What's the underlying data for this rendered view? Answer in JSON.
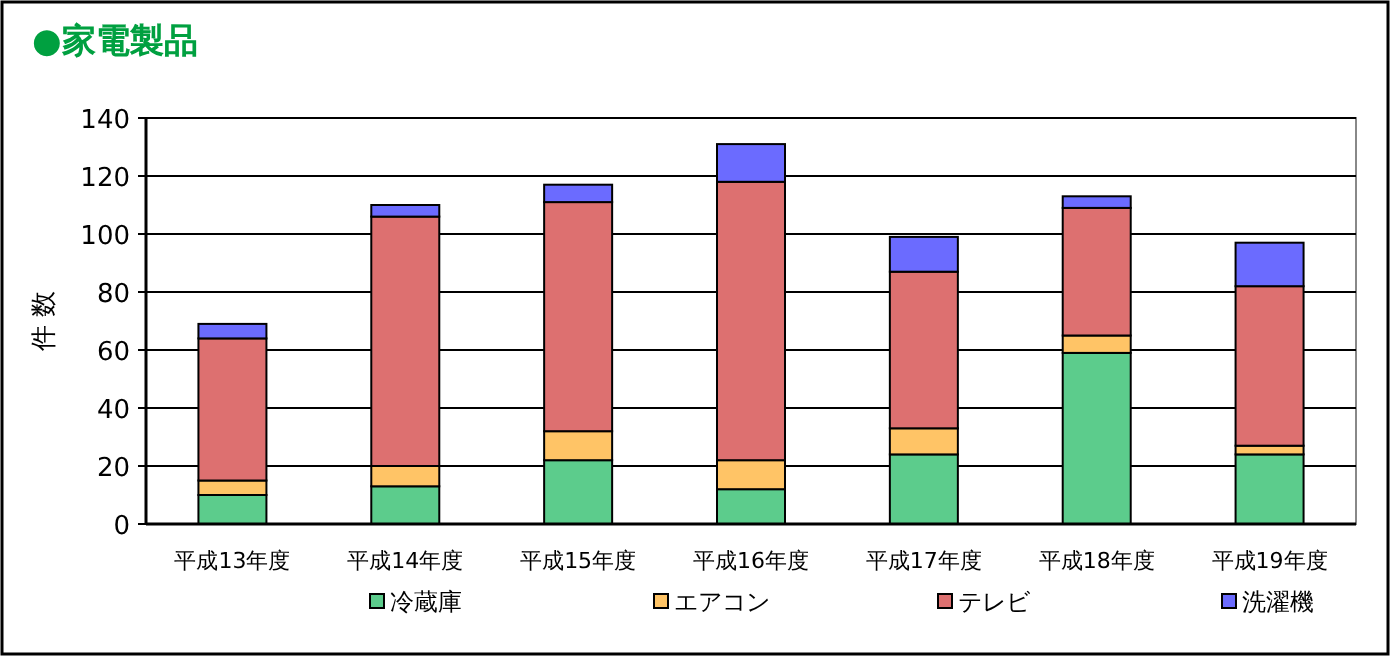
{
  "chart_data": {
    "type": "bar",
    "title": "●家電製品",
    "ylabel": "件 数",
    "stacked": true,
    "categories": [
      "平成13年度",
      "平成14年度",
      "平成15年度",
      "平成16年度",
      "平成17年度",
      "平成18年度",
      "平成19年度"
    ],
    "series": [
      {
        "name": "冷蔵庫",
        "color": "#5ccc8c",
        "values": [
          10,
          13,
          22,
          12,
          24,
          59,
          24
        ]
      },
      {
        "name": "エアコン",
        "color": "#ffc466",
        "values": [
          5,
          7,
          10,
          10,
          9,
          6,
          3
        ]
      },
      {
        "name": "テレビ",
        "color": "#dd7070",
        "values": [
          49,
          86,
          79,
          96,
          54,
          44,
          55
        ]
      },
      {
        "name": "洗濯機",
        "color": "#6b6bff",
        "values": [
          5,
          4,
          6,
          13,
          12,
          4,
          15
        ]
      }
    ],
    "ylim": [
      0,
      140
    ],
    "yticks": [
      0,
      20,
      40,
      60,
      80,
      100,
      120,
      140
    ],
    "grid": "y",
    "legend": "bottom"
  }
}
